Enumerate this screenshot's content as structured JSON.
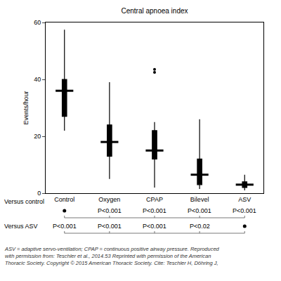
{
  "chart_data": {
    "type": "box",
    "title": "Central apnoea index",
    "y_label": "Events/hour",
    "categories": [
      "Control",
      "Oxygen",
      "CPAP",
      "Bilevel",
      "ASV"
    ],
    "lower": [
      22,
      5,
      2,
      1.5,
      1
    ],
    "q1": [
      27,
      13,
      12,
      3,
      2
    ],
    "median": [
      36,
      18,
      15,
      6.5,
      3
    ],
    "q3": [
      40,
      24,
      22,
      12,
      4
    ],
    "upper": [
      57.5,
      39,
      25,
      26,
      6.5
    ],
    "outliers": [
      [],
      [],
      [
        43.5,
        42.5
      ],
      [],
      []
    ],
    "color": "#000000",
    "ylim": [
      0,
      60
    ],
    "yticks": [
      0,
      20,
      40,
      60
    ],
    "grid": false,
    "comparisons": [
      {
        "label": "Versus control",
        "values": [
          null,
          "P<0.001",
          "P<0.001",
          "P<0.001",
          "P<0.001"
        ]
      },
      {
        "label": "Versus ASV",
        "values": [
          "P<0.001",
          "P<0.001",
          "P<0.001",
          "P<0.02",
          null
        ]
      }
    ],
    "note": [
      "ASV = adaptive servo-ventilation; CPAP = continuous positive airway pressure. Reproduced",
      "with permission from: Teschler et al., 2014.53 Reprinted with permission of the American",
      "Thoracic Society. Copyright © 2015 American Thoracic Society. Cite: Teschler H, Döhring J,"
    ]
  }
}
